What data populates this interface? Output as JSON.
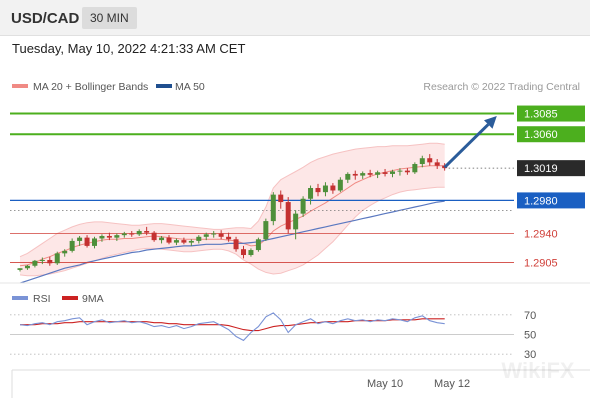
{
  "header": {
    "symbol": "USD/CAD",
    "timeframe": "30 MIN",
    "timestamp": "Tuesday, May 10, 2022 4:21:33 AM CET"
  },
  "legend": {
    "ma20": "MA 20 + Bollinger Bands",
    "ma50": "MA 50",
    "credit": "Research © 2022 Trading Central",
    "rsi": "RSI",
    "ma9": "9MA"
  },
  "watermark": "WikiFX",
  "colors": {
    "resistance": "#4caf1e",
    "support": "#1a5fc2",
    "support_minor": "#d0403a",
    "up_candle": "#4e8f3a",
    "down_candle": "#c43131",
    "bollinger": "#fbd7d7",
    "ma20": "#f08a84",
    "ma50": "#5a78c0",
    "rsi": "#7a93d6",
    "rsi_ma": "#cc2222",
    "arrow": "#2b5c9a",
    "last_price": "#2a2a2a"
  },
  "chart_data": [
    {
      "type": "candlestick",
      "ylim": [
        1.2885,
        1.3105
      ],
      "x_labels": [
        {
          "label": "May 10",
          "index": 49
        },
        {
          "label": "May 12",
          "index": 58
        }
      ],
      "levels": [
        {
          "name": "resistance-2",
          "value": 1.3085,
          "label": "1.3085",
          "kind": "resistance"
        },
        {
          "name": "resistance-1",
          "value": 1.306,
          "label": "1.3060",
          "kind": "resistance"
        },
        {
          "name": "last-price",
          "value": 1.3019,
          "label": "1.3019",
          "kind": "last"
        },
        {
          "name": "pivot",
          "value": 1.298,
          "label": "1.2980",
          "kind": "support"
        },
        {
          "name": "support-1",
          "value": 1.294,
          "label": "1.2940",
          "kind": "support_minor"
        },
        {
          "name": "support-2",
          "value": 1.2905,
          "label": "1.2905",
          "kind": "support_minor"
        }
      ],
      "arrow": {
        "from": [
          57,
          1.302
        ],
        "to": [
          64,
          1.3082
        ]
      },
      "candles": [
        [
          1.2896,
          1.2898,
          1.2894,
          1.2898
        ],
        [
          1.2898,
          1.2902,
          1.2896,
          1.2901
        ],
        [
          1.2901,
          1.2908,
          1.2899,
          1.2907
        ],
        [
          1.2907,
          1.2911,
          1.2903,
          1.2908
        ],
        [
          1.2908,
          1.2912,
          1.2901,
          1.2904
        ],
        [
          1.2904,
          1.2918,
          1.2902,
          1.2916
        ],
        [
          1.2916,
          1.2921,
          1.2912,
          1.2919
        ],
        [
          1.2919,
          1.2934,
          1.2917,
          1.2931
        ],
        [
          1.2931,
          1.2937,
          1.2925,
          1.2935
        ],
        [
          1.2935,
          1.2938,
          1.2923,
          1.2925
        ],
        [
          1.2925,
          1.2936,
          1.2922,
          1.2934
        ],
        [
          1.2934,
          1.2939,
          1.293,
          1.2937
        ],
        [
          1.2937,
          1.2941,
          1.2932,
          1.2935
        ],
        [
          1.2935,
          1.294,
          1.2931,
          1.2938
        ],
        [
          1.2938,
          1.2942,
          1.2935,
          1.294
        ],
        [
          1.294,
          1.2943,
          1.2936,
          1.2939
        ],
        [
          1.2939,
          1.2945,
          1.2937,
          1.2943
        ],
        [
          1.2943,
          1.2948,
          1.2938,
          1.2941
        ],
        [
          1.2941,
          1.2943,
          1.293,
          1.2932
        ],
        [
          1.2932,
          1.2937,
          1.2928,
          1.2935
        ],
        [
          1.2935,
          1.2938,
          1.2927,
          1.2929
        ],
        [
          1.2929,
          1.2934,
          1.2926,
          1.2932
        ],
        [
          1.2932,
          1.2935,
          1.2927,
          1.2929
        ],
        [
          1.2929,
          1.2933,
          1.2925,
          1.2931
        ],
        [
          1.2931,
          1.2938,
          1.2928,
          1.2936
        ],
        [
          1.2936,
          1.2941,
          1.2932,
          1.2939
        ],
        [
          1.2939,
          1.2943,
          1.2935,
          1.294
        ],
        [
          1.294,
          1.2944,
          1.2933,
          1.2936
        ],
        [
          1.2936,
          1.2941,
          1.293,
          1.2933
        ],
        [
          1.2933,
          1.2936,
          1.2918,
          1.2921
        ],
        [
          1.2921,
          1.2925,
          1.291,
          1.2914
        ],
        [
          1.2914,
          1.2922,
          1.2912,
          1.292
        ],
        [
          1.292,
          1.2935,
          1.2918,
          1.2933
        ],
        [
          1.2933,
          1.2958,
          1.2931,
          1.2955
        ],
        [
          1.2955,
          1.299,
          1.295,
          1.2987
        ],
        [
          1.2987,
          1.2992,
          1.297,
          1.2978
        ],
        [
          1.2978,
          1.2984,
          1.294,
          1.2945
        ],
        [
          1.2945,
          1.2968,
          1.2933,
          1.2964
        ],
        [
          1.2964,
          1.2985,
          1.296,
          1.2982
        ],
        [
          1.2982,
          1.2998,
          1.2975,
          1.2995
        ],
        [
          1.2995,
          1.3,
          1.2985,
          1.299
        ],
        [
          1.299,
          1.3002,
          1.2985,
          1.2998
        ],
        [
          1.2998,
          1.3001,
          1.2988,
          1.2992
        ],
        [
          1.2992,
          1.3008,
          1.299,
          1.3005
        ],
        [
          1.3005,
          1.3014,
          1.3001,
          1.3012
        ],
        [
          1.3012,
          1.3016,
          1.3005,
          1.301
        ],
        [
          1.301,
          1.3015,
          1.3006,
          1.3013
        ],
        [
          1.3013,
          1.3017,
          1.3008,
          1.3011
        ],
        [
          1.3011,
          1.3016,
          1.3007,
          1.3014
        ],
        [
          1.3014,
          1.3018,
          1.3009,
          1.3012
        ],
        [
          1.3012,
          1.3017,
          1.3008,
          1.3015
        ],
        [
          1.3015,
          1.3019,
          1.301,
          1.3016
        ],
        [
          1.3016,
          1.3019,
          1.3011,
          1.3014
        ],
        [
          1.3014,
          1.3026,
          1.3012,
          1.3024
        ],
        [
          1.3024,
          1.3034,
          1.302,
          1.3031
        ],
        [
          1.3031,
          1.3036,
          1.3022,
          1.3026
        ],
        [
          1.3026,
          1.303,
          1.3018,
          1.3022
        ],
        [
          1.3022,
          1.3025,
          1.3016,
          1.3019
        ]
      ],
      "bollinger": {
        "upper": [
          1.2912,
          1.2916,
          1.2922,
          1.2928,
          1.2934,
          1.294,
          1.2944,
          1.2948,
          1.2951,
          1.2953,
          1.2954,
          1.2954,
          1.2953,
          1.2952,
          1.2951,
          1.295,
          1.295,
          1.2951,
          1.2952,
          1.2952,
          1.2951,
          1.295,
          1.2949,
          1.2948,
          1.2947,
          1.2946,
          1.2945,
          1.2945,
          1.2946,
          1.2947,
          1.2947,
          1.2946,
          1.2955,
          1.2972,
          1.2995,
          1.3005,
          1.301,
          1.3015,
          1.302,
          1.3026,
          1.303,
          1.3033,
          1.3036,
          1.3038,
          1.304,
          1.3042,
          1.3043,
          1.3044,
          1.3045,
          1.3045,
          1.3046,
          1.3046,
          1.3046,
          1.3047,
          1.3048,
          1.3049,
          1.3049,
          1.3048
        ],
        "lower": [
          1.289,
          1.2889,
          1.2889,
          1.289,
          1.2891,
          1.2893,
          1.2895,
          1.2898,
          1.2901,
          1.2904,
          1.2907,
          1.291,
          1.2913,
          1.2915,
          1.2917,
          1.2919,
          1.2921,
          1.2922,
          1.2922,
          1.2921,
          1.292,
          1.2919,
          1.2918,
          1.2918,
          1.2919,
          1.292,
          1.2921,
          1.2921,
          1.2919,
          1.2915,
          1.2908,
          1.2903,
          1.2897,
          1.2893,
          1.2891,
          1.2892,
          1.2895,
          1.2898,
          1.2902,
          1.2908,
          1.2914,
          1.2922,
          1.293,
          1.294,
          1.295,
          1.296,
          1.2968,
          1.2974,
          1.2979,
          1.2983,
          1.2987,
          1.299,
          1.2992,
          1.2993,
          1.2994,
          1.2995,
          1.2996,
          1.2996
        ],
        "ma20": [
          1.2901,
          1.2902,
          1.2905,
          1.2909,
          1.2912,
          1.2916,
          1.2919,
          1.2923,
          1.2926,
          1.2928,
          1.293,
          1.2932,
          1.2933,
          1.2933,
          1.2934,
          1.2934,
          1.2935,
          1.2936,
          1.2937,
          1.2936,
          1.2935,
          1.2934,
          1.2933,
          1.2933,
          1.2933,
          1.2933,
          1.2933,
          1.2933,
          1.2932,
          1.2931,
          1.2928,
          1.2925,
          1.2926,
          1.2933,
          1.2943,
          1.2949,
          1.2953,
          1.2957,
          1.2961,
          1.2967,
          1.2972,
          1.2977,
          1.2983,
          1.2989,
          1.2995,
          1.3001,
          1.3005,
          1.3009,
          1.3012,
          1.3014,
          1.3016,
          1.3018,
          1.3019,
          1.302,
          1.3021,
          1.3022,
          1.3022,
          1.3022
        ]
      },
      "ma50": [
        1.288,
        1.2883,
        1.2886,
        1.2889,
        1.2892,
        1.2895,
        1.2898,
        1.29,
        1.2902,
        1.2905,
        1.2907,
        1.2909,
        1.2911,
        1.2913,
        1.2915,
        1.2917,
        1.2918,
        1.292,
        1.2921,
        1.2922,
        1.2923,
        1.2924,
        1.2925,
        1.2925,
        1.2926,
        1.2927,
        1.2927,
        1.2927,
        1.2928,
        1.2928,
        1.2928,
        1.2929,
        1.293,
        1.2932,
        1.2934,
        1.2936,
        1.2938,
        1.294,
        1.2942,
        1.2944,
        1.2946,
        1.2948,
        1.295,
        1.2952,
        1.2954,
        1.2956,
        1.2958,
        1.296,
        1.2962,
        1.2964,
        1.2966,
        1.2968,
        1.297,
        1.2972,
        1.2974,
        1.2976,
        1.2978,
        1.2979
      ]
    },
    {
      "type": "line",
      "ylim": [
        20,
        80
      ],
      "y_ticks": [
        70,
        50,
        30
      ],
      "series": [
        {
          "name": "RSI",
          "values": [
            60,
            59,
            61,
            62,
            60,
            63,
            64,
            66,
            67,
            60,
            63,
            65,
            62,
            63,
            64,
            62,
            63,
            61,
            58,
            59,
            57,
            59,
            56,
            58,
            61,
            62,
            63,
            59,
            55,
            48,
            44,
            52,
            58,
            68,
            72,
            65,
            52,
            60,
            63,
            66,
            61,
            63,
            61,
            64,
            66,
            64,
            65,
            63,
            65,
            64,
            66,
            65,
            63,
            67,
            69,
            64,
            62,
            61
          ]
        },
        {
          "name": "9MA",
          "values": [
            60,
            60,
            60,
            61,
            61,
            61,
            62,
            62,
            63,
            63,
            63,
            63,
            63,
            63,
            63,
            63,
            63,
            63,
            62,
            62,
            61,
            61,
            60,
            60,
            60,
            60,
            60,
            60,
            59,
            57,
            55,
            54,
            54,
            56,
            58,
            59,
            59,
            60,
            61,
            62,
            62,
            63,
            63,
            63,
            63,
            64,
            64,
            64,
            64,
            64,
            65,
            65,
            65,
            65,
            66,
            66,
            66,
            66
          ]
        }
      ]
    }
  ]
}
